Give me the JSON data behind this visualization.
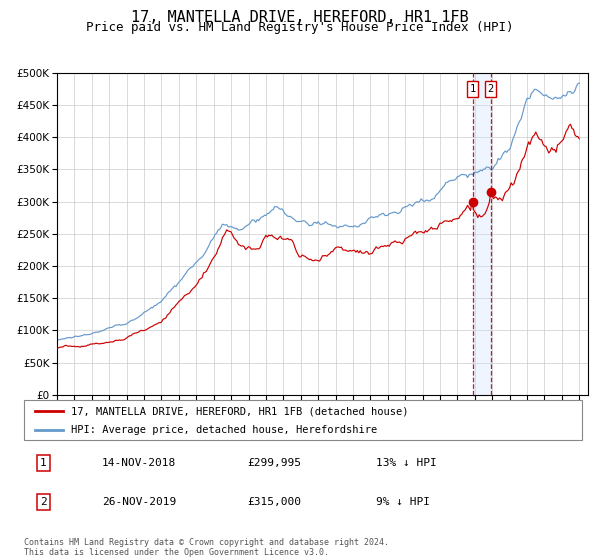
{
  "title": "17, MANTELLA DRIVE, HEREFORD, HR1 1FB",
  "subtitle": "Price paid vs. HM Land Registry's House Price Index (HPI)",
  "title_fontsize": 11,
  "subtitle_fontsize": 9,
  "legend_line1": "17, MANTELLA DRIVE, HEREFORD, HR1 1FB (detached house)",
  "legend_line2": "HPI: Average price, detached house, Herefordshire",
  "red_line_color": "#cc0000",
  "blue_line_color": "#6699cc",
  "transaction1_date_num": 2018.87,
  "transaction1_price": 299995,
  "transaction2_date_num": 2019.9,
  "transaction2_price": 315000,
  "table_rows": [
    [
      "1",
      "14-NOV-2018",
      "£299,995",
      "13% ↓ HPI"
    ],
    [
      "2",
      "26-NOV-2019",
      "£315,000",
      "9% ↓ HPI"
    ]
  ],
  "footnote": "Contains HM Land Registry data © Crown copyright and database right 2024.\nThis data is licensed under the Open Government Licence v3.0.",
  "ylim": [
    0,
    500000
  ],
  "yticks": [
    0,
    50000,
    100000,
    150000,
    200000,
    250000,
    300000,
    350000,
    400000,
    450000,
    500000
  ],
  "year_start": 1995,
  "year_end": 2025,
  "background_color": "#ffffff",
  "plot_bg_color": "#ffffff",
  "grid_color": "#cccccc",
  "shade_color": "#cce0ff",
  "dashed_line_color": "#cc0000"
}
